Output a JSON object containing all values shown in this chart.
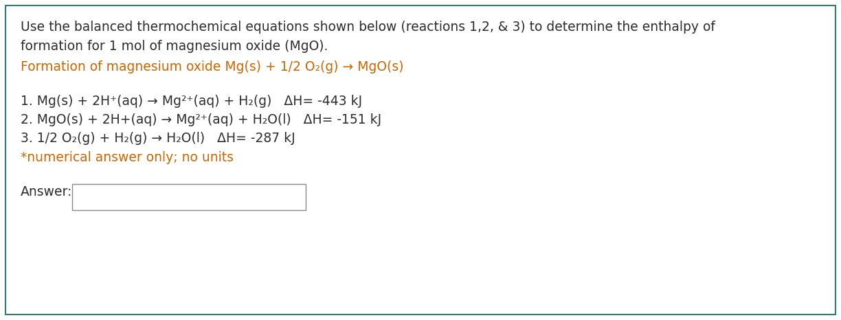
{
  "bg_color": "#ffffff",
  "border_color": "#2e7d6e",
  "title_line1": "Use the balanced thermochemical equations shown below (reactions 1,2, & 3) to determine the enthalpy of",
  "title_line2": "formation for 1 mol of magnesium oxide (MgO).",
  "formation_text": "Formation of magnesium oxide Mg(s) + 1/2 O₂(g) → MgO(s)",
  "reaction1": "1. Mg(s) + 2H⁺(aq) → Mg²⁺(aq) + H₂(g)   ΔH= -443 kJ",
  "reaction2": "2. MgO(s) + 2H+(aq) → Mg²⁺(aq) + H₂O(l)   ΔH= -151 kJ",
  "reaction3": "3. 1/2 O₂(g) + H₂(g) → H₂O(l)   ΔH= -287 kJ",
  "note": "*numerical answer only; no units",
  "answer_label": "Answer:",
  "text_color": "#2d2d2d",
  "orange_color": "#cc6600",
  "font_size": 13.5,
  "figwidth": 12.24,
  "figheight": 4.66,
  "dpi": 100
}
